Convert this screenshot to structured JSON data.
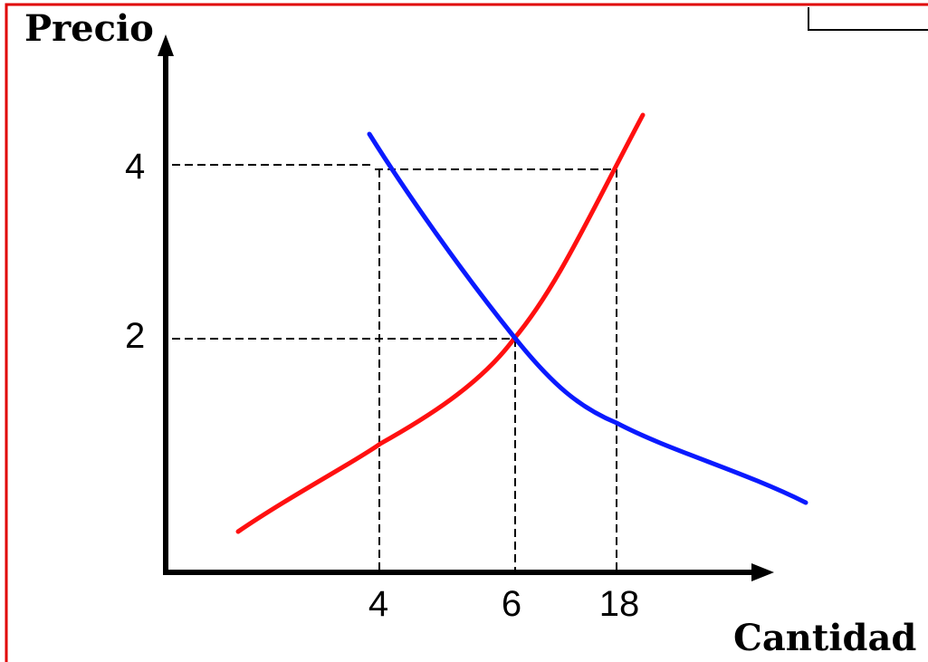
{
  "diagram": {
    "y_axis_label": "Precio",
    "x_axis_label": "Cantidad",
    "y_ticks": [
      "4",
      "2"
    ],
    "x_ticks": [
      "4",
      "6",
      "18"
    ],
    "frame_color": "#e00000",
    "supply_color": "#ff1010",
    "demand_color": "#0a1aff",
    "guide_color": "#000000"
  }
}
